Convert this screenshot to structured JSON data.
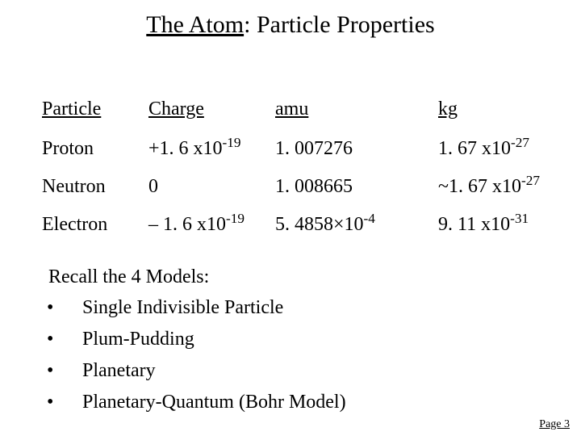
{
  "title_part1": "The Atom",
  "title_part2": ":  Particle Properties",
  "table": {
    "headers": {
      "particle": "Particle",
      "charge": "Charge",
      "amu": "amu",
      "kg": "kg"
    },
    "rows": [
      {
        "particle": "Proton",
        "charge_pre": "+1. 6 x10",
        "charge_sup": "-19",
        "amu_pre": "1. 007276",
        "amu_sup": "",
        "kg_pre": "1. 67 x10",
        "kg_sup": "-27"
      },
      {
        "particle": "Neutron",
        "charge_pre": " 0",
        "charge_sup": "",
        "amu_pre": "1. 008665",
        "amu_sup": "",
        "kg_pre": "~1. 67 x10",
        "kg_sup": "-27"
      },
      {
        "particle": "Electron",
        "charge_pre": "– 1. 6 x10",
        "charge_sup": "-19",
        "amu_pre": "5. 4858×10",
        "amu_sup": "-4",
        "kg_pre": "9. 11 x10",
        "kg_sup": "-31"
      }
    ]
  },
  "recall_label": "Recall the 4 Models:",
  "models": [
    "Single Indivisible Particle",
    "Plum-Pudding",
    "Planetary",
    "Planetary-Quantum (Bohr Model)"
  ],
  "footer": "Page 3"
}
